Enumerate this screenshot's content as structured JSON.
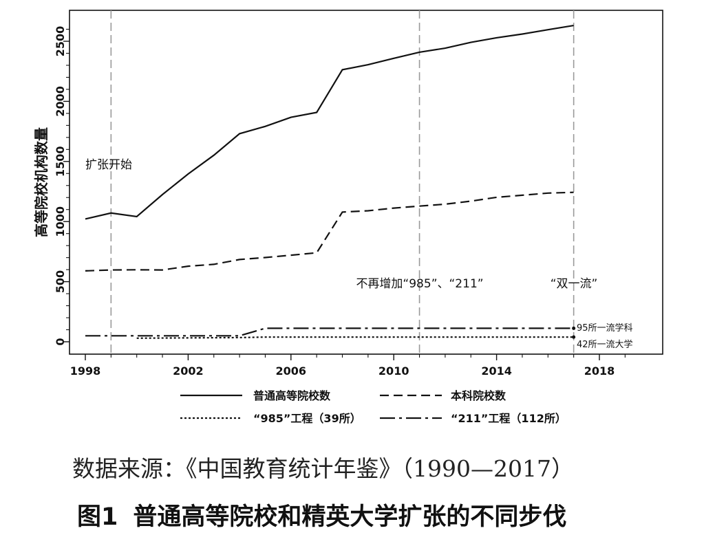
{
  "chart_data": {
    "type": "line",
    "xlabel": "",
    "ylabel": "高等院校机构数量",
    "xlim": [
      1998,
      2020
    ],
    "ylim": [
      -50,
      2700
    ],
    "xticks": [
      1998,
      2002,
      2006,
      2010,
      2014,
      2018
    ],
    "yticks": [
      0,
      500,
      1000,
      1500,
      2000,
      2500
    ],
    "grid": false,
    "legend_position": "bottom",
    "series": [
      {
        "name": "普通高等院校数",
        "style": "solid",
        "x": [
          1998,
          1999,
          2000,
          2001,
          2002,
          2003,
          2004,
          2005,
          2006,
          2007,
          2008,
          2009,
          2010,
          2011,
          2012,
          2013,
          2014,
          2015,
          2016,
          2017
        ],
        "values": [
          1022,
          1071,
          1041,
          1225,
          1396,
          1552,
          1731,
          1792,
          1867,
          1908,
          2263,
          2305,
          2358,
          2409,
          2442,
          2491,
          2529,
          2560,
          2596,
          2631
        ]
      },
      {
        "name": "本科院校数",
        "style": "dashed",
        "x": [
          1998,
          1999,
          2000,
          2001,
          2002,
          2003,
          2004,
          2005,
          2006,
          2007,
          2008,
          2009,
          2010,
          2011,
          2012,
          2013,
          2014,
          2015,
          2016,
          2017
        ],
        "values": [
          590,
          597,
          599,
          597,
          629,
          644,
          684,
          701,
          720,
          740,
          1079,
          1090,
          1112,
          1129,
          1145,
          1170,
          1202,
          1219,
          1237,
          1243
        ]
      },
      {
        "name": "“985”工程（39所）",
        "style": "dotted",
        "x": [
          2000,
          2004,
          2005,
          2017
        ],
        "values": [
          30,
          35,
          39,
          39
        ]
      },
      {
        "name": "“211”工程（112所）",
        "style": "dashdot",
        "x": [
          1998,
          2004,
          2005,
          2017
        ],
        "values": [
          50,
          50,
          112,
          112
        ]
      }
    ],
    "vlines": [
      1999,
      2011,
      2017
    ],
    "annotations": [
      {
        "text": "扩张开始",
        "x": 1999,
        "y": 1490
      },
      {
        "text": "不再增加“985”、“211”",
        "x": 2011,
        "y": 490
      },
      {
        "text": "“双一流”",
        "x": 2017,
        "y": 490
      },
      {
        "text": "95所一流学科",
        "x": 2017,
        "y": 95
      },
      {
        "text": "42所一流大学",
        "x": 2017,
        "y": 42
      }
    ]
  },
  "source_text": "数据来源：《中国教育统计年鉴》（1990—2017）",
  "caption": {
    "figure_number": "图1",
    "title": "普通高等院校和精英大学扩张的不同步伐"
  }
}
